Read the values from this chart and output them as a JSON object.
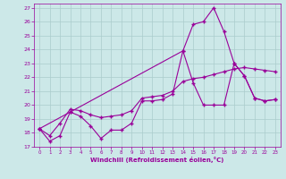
{
  "xlabel": "Windchill (Refroidissement éolien,°C)",
  "background_color": "#cce8e8",
  "grid_color": "#aacccc",
  "line_color": "#990099",
  "xlim": [
    -0.5,
    23.5
  ],
  "ylim": [
    17,
    27.3
  ],
  "yticks": [
    17,
    18,
    19,
    20,
    21,
    22,
    23,
    24,
    25,
    26,
    27
  ],
  "xticks": [
    0,
    1,
    2,
    3,
    4,
    5,
    6,
    7,
    8,
    9,
    10,
    11,
    12,
    13,
    14,
    15,
    16,
    17,
    18,
    19,
    20,
    21,
    22,
    23
  ],
  "line1_x": [
    0,
    1,
    2,
    3,
    4,
    5,
    6,
    7,
    8,
    9,
    10,
    11,
    12,
    13,
    14,
    15,
    16,
    17,
    18,
    19,
    20,
    21,
    22,
    23
  ],
  "line1_y": [
    18.3,
    17.4,
    17.8,
    19.5,
    19.2,
    18.5,
    17.6,
    18.2,
    18.2,
    18.7,
    20.3,
    20.3,
    20.4,
    20.8,
    23.9,
    21.6,
    20.0,
    20.0,
    20.0,
    23.0,
    22.1,
    20.5,
    20.3,
    20.4
  ],
  "line2_x": [
    0,
    1,
    2,
    3,
    4,
    5,
    6,
    7,
    8,
    9,
    10,
    11,
    12,
    13,
    14,
    15,
    16,
    17,
    18,
    19,
    20,
    21,
    22,
    23
  ],
  "line2_y": [
    18.3,
    17.8,
    18.7,
    19.7,
    19.6,
    19.3,
    19.1,
    19.2,
    19.3,
    19.6,
    20.5,
    20.6,
    20.7,
    21.0,
    21.7,
    21.9,
    22.0,
    22.2,
    22.4,
    22.6,
    22.7,
    22.6,
    22.5,
    22.4
  ],
  "line3_x": [
    0,
    3,
    14,
    15,
    16,
    17,
    18,
    19,
    20,
    21,
    22,
    23
  ],
  "line3_y": [
    18.3,
    19.5,
    23.9,
    25.8,
    26.0,
    27.0,
    25.3,
    23.0,
    22.1,
    20.5,
    20.3,
    20.4
  ]
}
